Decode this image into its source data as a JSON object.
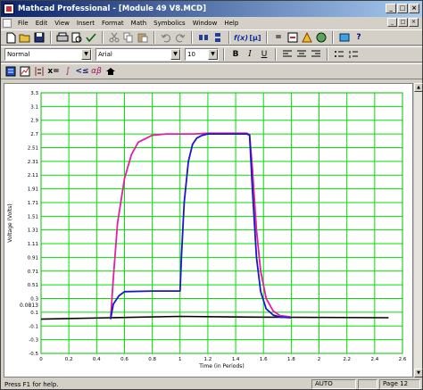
{
  "window": {
    "title": "Mathcad Professional - [Module 49 V8.MCD]"
  },
  "titlebar_buttons": [
    "_",
    "□",
    "×"
  ],
  "menu": [
    "File",
    "Edit",
    "View",
    "Insert",
    "Format",
    "Math",
    "Symbolics",
    "Window",
    "Help"
  ],
  "format_bar": {
    "style": "Normal",
    "font": "Arial",
    "size": "10"
  },
  "format_buttons": {
    "bold": "B",
    "italic": "I",
    "underline": "U"
  },
  "status": {
    "message": "Press F1 for help.",
    "mode": "AUTO",
    "page": "Page 12"
  },
  "chart_data": {
    "type": "line",
    "title": "",
    "xlabel": "Time (in Periods)",
    "ylabel": "Voltage (Volts)",
    "xlim": [
      0,
      2.6
    ],
    "ylim": [
      -0.5,
      3.3
    ],
    "x_ticks": [
      "0",
      "0.2",
      "0.4",
      "0.6",
      "0.8",
      "1",
      "1.2",
      "1.4",
      "1.6",
      "1.8",
      "2",
      "2.2",
      "2.4",
      "2.6"
    ],
    "y_ticks": [
      "3.3",
      "3.1",
      "2.9",
      "2.7",
      "2.51",
      "2.31",
      "2.11",
      "1.91",
      "1.71",
      "1.51",
      "1.31",
      "1.11",
      "0.91",
      "0.71",
      "0.51",
      "0.3",
      "0.1",
      "-0.1",
      "-0.3",
      "-0.5"
    ],
    "y_annotation": "0.0813",
    "grid": true,
    "series": [
      {
        "color": "#e020a0",
        "x": [
          0.5,
          0.52,
          0.55,
          0.6,
          0.65,
          0.7,
          0.8,
          0.9,
          1.0,
          1.1,
          1.2,
          1.3,
          1.4,
          1.48,
          1.5,
          1.52,
          1.55,
          1.58,
          1.62,
          1.67,
          1.72,
          1.8
        ],
        "y": [
          0.0,
          0.6,
          1.4,
          2.05,
          2.4,
          2.58,
          2.68,
          2.7,
          2.7,
          2.7,
          2.71,
          2.71,
          2.71,
          2.71,
          2.69,
          2.2,
          1.3,
          0.7,
          0.3,
          0.12,
          0.05,
          0.03
        ]
      },
      {
        "color": "#1818c8",
        "x": [
          0.5,
          0.52,
          0.56,
          0.6,
          0.8,
          1.0,
          1.01,
          1.03,
          1.06,
          1.09,
          1.12,
          1.16,
          1.2,
          1.3,
          1.4,
          1.48,
          1.5,
          1.52,
          1.55,
          1.58,
          1.62,
          1.67,
          1.72,
          1.8
        ],
        "y": [
          0.0,
          0.22,
          0.34,
          0.4,
          0.41,
          0.41,
          0.9,
          1.7,
          2.3,
          2.55,
          2.64,
          2.68,
          2.7,
          2.7,
          2.7,
          2.7,
          2.68,
          1.9,
          0.9,
          0.4,
          0.15,
          0.06,
          0.03,
          0.02
        ]
      },
      {
        "color": "#000000",
        "x": [
          0,
          0.5,
          1.0,
          1.5,
          2.5
        ],
        "y": [
          0.0,
          0.02,
          0.04,
          0.03,
          0.02
        ]
      }
    ]
  }
}
